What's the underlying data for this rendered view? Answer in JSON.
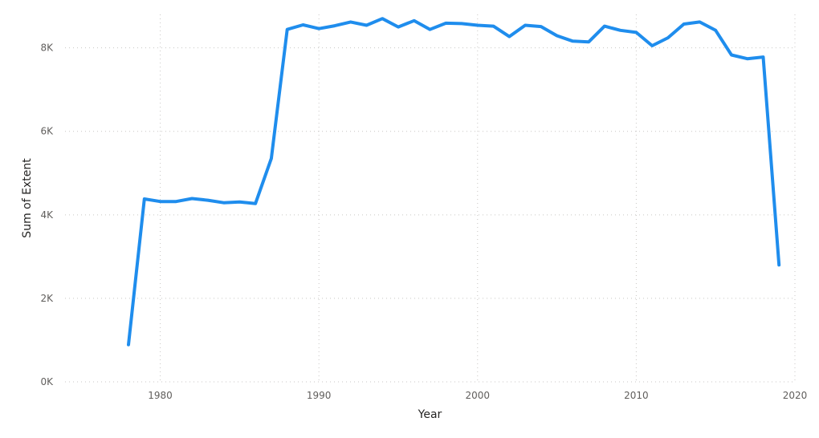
{
  "chart_data": {
    "type": "line",
    "xlabel": "Year",
    "ylabel": "Sum of Extent",
    "xlim": [
      1974,
      2020
    ],
    "ylim": [
      0,
      8800
    ],
    "xticks": [
      1980,
      1990,
      2000,
      2010,
      2020
    ],
    "yticks": [
      0,
      2000,
      4000,
      6000,
      8000
    ],
    "ytick_labels": [
      "0K",
      "2K",
      "4K",
      "6K",
      "8K"
    ],
    "grid": true,
    "legend": "none",
    "colors": {
      "line": "#1f8ded"
    },
    "series": [
      {
        "x": [
          1978,
          1979,
          1980,
          1981,
          1982,
          1983,
          1984,
          1985,
          1986,
          1987,
          1988,
          1989,
          1990,
          1991,
          1992,
          1993,
          1994,
          1995,
          1996,
          1997,
          1998,
          1999,
          2000,
          2001,
          2002,
          2003,
          2004,
          2005,
          2006,
          2007,
          2008,
          2009,
          2010,
          2011,
          2012,
          2013,
          2014,
          2015,
          2016,
          2017,
          2018,
          2019
        ],
        "values": [
          890,
          4380,
          4320,
          4320,
          4390,
          4350,
          4290,
          4310,
          4270,
          5350,
          8440,
          8550,
          8460,
          8530,
          8620,
          8540,
          8700,
          8500,
          8650,
          8440,
          8590,
          8580,
          8540,
          8520,
          8270,
          8540,
          8510,
          8290,
          8160,
          8140,
          8520,
          8420,
          8370,
          8050,
          8240,
          8570,
          8620,
          8420,
          7830,
          7740,
          7780,
          2800
        ]
      }
    ]
  }
}
